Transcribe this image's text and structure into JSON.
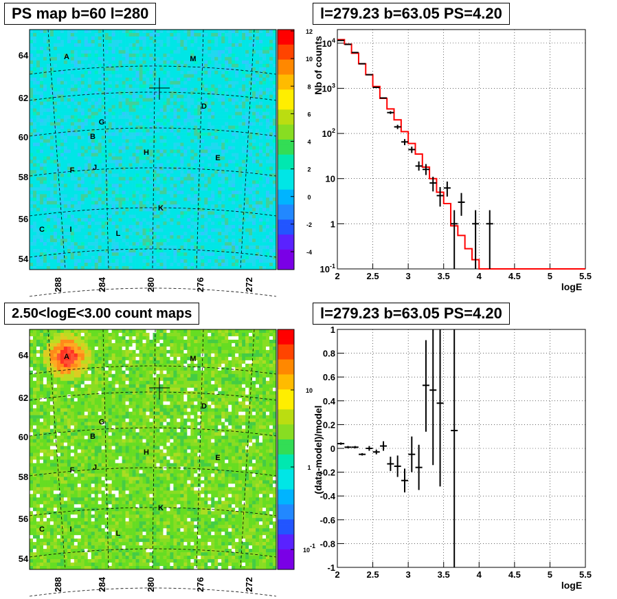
{
  "colors": {
    "map1_bg": "#00e5e5",
    "map2_bg": "#55dd33",
    "model_line": "#ff0000",
    "data": "#000000"
  },
  "chart_data": [
    {
      "type": "heatmap",
      "title": "PS map b=60 l=280",
      "x_ticks": [
        "288",
        "284",
        "280",
        "276",
        "272"
      ],
      "y_ticks": [
        "64",
        "62",
        "60",
        "58",
        "56",
        "54"
      ],
      "colorbar_ticks": [
        "12",
        "10",
        "8",
        "6",
        "4",
        "2",
        "0",
        "-2",
        "-4"
      ],
      "colorbar_scale": "linear",
      "sources": [
        "A",
        "M",
        "D",
        "G",
        "B",
        "H",
        "E",
        "F",
        "J",
        "K",
        "C",
        "I",
        "L"
      ]
    },
    {
      "type": "line",
      "title": "l=279.23 b=63.05 PS=4.20",
      "xlabel": "logE",
      "ylabel": "Nb of counts",
      "yscale": "log",
      "xlim": [
        2,
        5.5
      ],
      "ylim": [
        0.1,
        20000
      ],
      "grid": true,
      "x_ticks": [
        "2",
        "2.5",
        "3",
        "3.5",
        "4",
        "4.5",
        "5",
        "5.5"
      ],
      "y_ticks": [
        "10^4",
        "10^3",
        "10^2",
        "10",
        "1",
        "10^-1"
      ],
      "model": {
        "edges": [
          2.0,
          2.1,
          2.2,
          2.3,
          2.4,
          2.5,
          2.6,
          2.7,
          2.8,
          2.9,
          3.0,
          3.1,
          3.2,
          3.3,
          3.4,
          3.5,
          3.6,
          3.7,
          3.8,
          3.9,
          4.0,
          5.5
        ],
        "values": [
          12000,
          9500,
          6000,
          3500,
          2000,
          1100,
          600,
          350,
          200,
          110,
          60,
          35,
          18,
          10,
          5,
          2.8,
          0.9,
          0.55,
          0.28,
          0.16,
          0.1
        ]
      },
      "data": {
        "x": [
          2.05,
          2.15,
          2.25,
          2.35,
          2.45,
          2.55,
          2.65,
          2.75,
          2.85,
          2.95,
          3.05,
          3.15,
          3.25,
          3.35,
          3.45,
          3.55,
          3.65,
          3.75,
          3.95,
          4.15
        ],
        "y": [
          11500,
          9400,
          6200,
          3500,
          2000,
          1050,
          610,
          290,
          140,
          65,
          44,
          19,
          16,
          8,
          4.2,
          6.2,
          1.0,
          3.0,
          1.0,
          1.0
        ],
        "ylow": [
          11300,
          9250,
          6100,
          3450,
          1960,
          1030,
          590,
          270,
          125,
          55,
          37,
          15,
          12,
          5.2,
          2.4,
          4.0,
          0.1,
          1.5,
          0.1,
          0.1
        ],
        "yhigh": [
          11700,
          9550,
          6300,
          3550,
          2040,
          1070,
          630,
          310,
          155,
          75,
          51,
          24,
          21,
          11,
          6.5,
          8.6,
          2.0,
          4.8,
          2.0,
          2.0
        ]
      }
    },
    {
      "type": "heatmap",
      "title": "2.50<logE<3.00 count maps",
      "x_ticks": [
        "288",
        "284",
        "280",
        "276",
        "272"
      ],
      "y_ticks": [
        "64",
        "62",
        "60",
        "58",
        "56",
        "54"
      ],
      "colorbar_ticks": [
        "10",
        "1",
        "10^-1"
      ],
      "colorbar_scale": "log",
      "sources": [
        "A",
        "M",
        "D",
        "G",
        "B",
        "H",
        "E",
        "F",
        "J",
        "K",
        "C",
        "I",
        "L"
      ]
    },
    {
      "type": "scatter",
      "title": "l=279.23 b=63.05 PS=4.20",
      "xlabel": "logE",
      "ylabel": "(data-model)/model",
      "xlim": [
        2,
        5.5
      ],
      "ylim": [
        -1,
        1
      ],
      "grid": true,
      "x_ticks": [
        "2",
        "2.5",
        "3",
        "3.5",
        "4",
        "4.5",
        "5",
        "5.5"
      ],
      "y_ticks": [
        "1",
        "0.8",
        "0.6",
        "0.4",
        "0.2",
        "0",
        "-0.2",
        "-0.4",
        "-0.6",
        "-0.8",
        "-1"
      ],
      "data": {
        "x": [
          2.05,
          2.15,
          2.25,
          2.35,
          2.45,
          2.55,
          2.65,
          2.75,
          2.85,
          2.95,
          3.05,
          3.15,
          3.25,
          3.35,
          3.45,
          3.65
        ],
        "y": [
          0.04,
          0.01,
          0.01,
          -0.05,
          0.0,
          -0.03,
          0.02,
          -0.13,
          -0.15,
          -0.27,
          -0.05,
          -0.16,
          0.53,
          0.49,
          0.38,
          0.15
        ],
        "ylow": [
          0.03,
          0.0,
          0.0,
          -0.06,
          -0.02,
          -0.05,
          -0.02,
          -0.19,
          -0.24,
          -0.37,
          -0.2,
          -0.35,
          0.14,
          -0.14,
          -0.32,
          -1.0
        ],
        "yhigh": [
          0.05,
          0.02,
          0.02,
          -0.04,
          0.02,
          -0.01,
          0.06,
          -0.07,
          -0.06,
          -0.17,
          0.1,
          0.03,
          0.91,
          1.0,
          1.0,
          1.0
        ]
      }
    }
  ]
}
